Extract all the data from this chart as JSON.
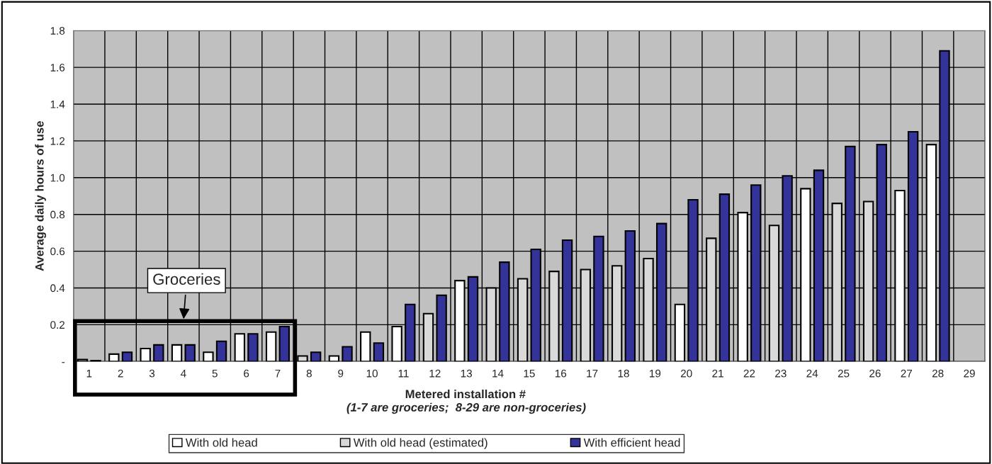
{
  "chart_data": {
    "type": "bar",
    "xlabel": "Metered installation #",
    "ylabel": "Average daily hours of use",
    "annotations": [
      "(1-7 are groceries;  8-29 are non-groceries)",
      "Groceries"
    ],
    "categories": [
      "1",
      "2",
      "3",
      "4",
      "5",
      "6",
      "7",
      "8",
      "9",
      "10",
      "11",
      "12",
      "13",
      "14",
      "15",
      "16",
      "17",
      "18",
      "19",
      "20",
      "21",
      "22",
      "23",
      "24",
      "25",
      "26",
      "27",
      "28",
      "29"
    ],
    "series": [
      {
        "name": "With old head",
        "color": "#ffffff",
        "values": [
          0.01,
          0.04,
          0.07,
          0.09,
          0.05,
          0.15,
          0.16,
          null,
          0.03,
          0.16,
          0.19,
          null,
          0.44,
          null,
          null,
          null,
          null,
          null,
          null,
          0.31,
          null,
          0.81,
          null,
          0.94,
          null,
          null,
          0.93,
          1.18,
          null
        ]
      },
      {
        "name": "With old head (estimated)",
        "color": "#d9d9d9",
        "values": [
          null,
          null,
          null,
          null,
          null,
          null,
          null,
          0.03,
          null,
          null,
          null,
          0.26,
          null,
          0.4,
          0.45,
          0.49,
          0.5,
          0.52,
          0.56,
          null,
          0.67,
          null,
          0.74,
          null,
          0.86,
          0.87,
          null,
          null,
          null
        ]
      },
      {
        "name": "With efficient head",
        "color": "#333399",
        "values": [
          0.005,
          0.05,
          0.09,
          0.09,
          0.11,
          0.15,
          0.19,
          0.05,
          0.08,
          0.1,
          0.31,
          0.36,
          0.46,
          0.54,
          0.61,
          0.66,
          0.68,
          0.71,
          0.75,
          0.88,
          0.91,
          0.96,
          1.01,
          1.04,
          1.17,
          1.18,
          1.25,
          1.69,
          null
        ]
      }
    ],
    "ylim": [
      0,
      1.8
    ],
    "yticks": [
      {
        "value": 0,
        "label": "-"
      },
      0.2,
      0.4,
      0.6,
      0.8,
      {
        "value": 1,
        "label": "1.0"
      },
      1.2,
      1.4,
      1.6,
      1.8
    ],
    "grid": true,
    "legend": "bottom"
  }
}
